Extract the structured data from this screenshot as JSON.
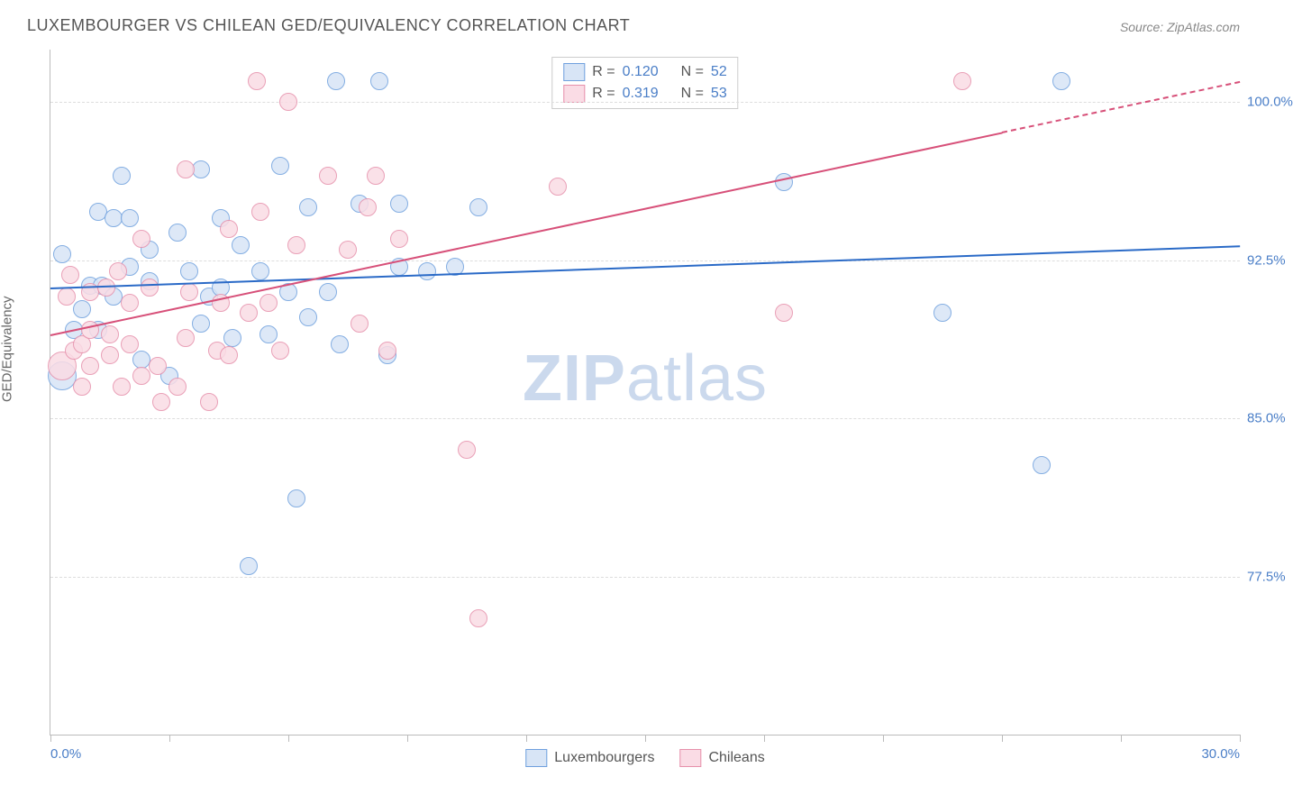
{
  "title": "LUXEMBOURGER VS CHILEAN GED/EQUIVALENCY CORRELATION CHART",
  "source": "Source: ZipAtlas.com",
  "watermark_bold": "ZIP",
  "watermark_light": "atlas",
  "chart": {
    "type": "scatter",
    "ylabel": "GED/Equivalency",
    "x_axis": {
      "min": 0.0,
      "max": 30.0,
      "label_suffix": "%",
      "tick_step": 3.0,
      "left_label": "0.0%",
      "right_label": "30.0%"
    },
    "y_axis": {
      "min": 70.0,
      "max": 102.5,
      "label_suffix": "%",
      "ticks": [
        77.5,
        85.0,
        92.5,
        100.0
      ]
    },
    "grid_color": "#dddddd",
    "axis_color": "#bbbbbb",
    "tick_label_color": "#4a7ec7",
    "background_color": "#ffffff",
    "watermark_color": "#cbd9ed",
    "marker_radius": 10,
    "marker_radius_large": 16,
    "series": [
      {
        "name": "Luxembourgers",
        "fill": "#d8e5f6",
        "stroke": "#6fa0de",
        "r_value": "0.120",
        "n_value": "52",
        "trend": {
          "x1": 0.0,
          "y1": 91.2,
          "x2": 30.0,
          "y2": 93.2,
          "color": "#2a6ac7",
          "dashed_after_x": null
        },
        "points": [
          {
            "x": 0.3,
            "y": 87.0,
            "r": 16
          },
          {
            "x": 0.3,
            "y": 92.8
          },
          {
            "x": 1.2,
            "y": 94.8
          },
          {
            "x": 1.0,
            "y": 91.3
          },
          {
            "x": 1.3,
            "y": 91.3
          },
          {
            "x": 0.8,
            "y": 90.2
          },
          {
            "x": 0.6,
            "y": 89.2
          },
          {
            "x": 1.2,
            "y": 89.2
          },
          {
            "x": 1.6,
            "y": 90.8
          },
          {
            "x": 1.6,
            "y": 94.5
          },
          {
            "x": 2.0,
            "y": 92.2
          },
          {
            "x": 2.0,
            "y": 94.5
          },
          {
            "x": 1.8,
            "y": 96.5
          },
          {
            "x": 2.5,
            "y": 91.5
          },
          {
            "x": 2.5,
            "y": 93.0
          },
          {
            "x": 2.3,
            "y": 87.8
          },
          {
            "x": 3.0,
            "y": 87.0
          },
          {
            "x": 3.2,
            "y": 93.8
          },
          {
            "x": 3.8,
            "y": 89.5
          },
          {
            "x": 3.5,
            "y": 92.0
          },
          {
            "x": 4.0,
            "y": 90.8
          },
          {
            "x": 3.8,
            "y": 96.8
          },
          {
            "x": 4.3,
            "y": 91.2
          },
          {
            "x": 4.3,
            "y": 94.5
          },
          {
            "x": 4.6,
            "y": 88.8
          },
          {
            "x": 4.8,
            "y": 93.2
          },
          {
            "x": 5.0,
            "y": 78.0
          },
          {
            "x": 5.3,
            "y": 92.0
          },
          {
            "x": 5.5,
            "y": 89.0
          },
          {
            "x": 5.8,
            "y": 97.0
          },
          {
            "x": 6.0,
            "y": 91.0
          },
          {
            "x": 6.2,
            "y": 81.2
          },
          {
            "x": 6.5,
            "y": 89.8
          },
          {
            "x": 6.5,
            "y": 95.0
          },
          {
            "x": 7.2,
            "y": 101.0
          },
          {
            "x": 7.0,
            "y": 91.0
          },
          {
            "x": 7.3,
            "y": 88.5
          },
          {
            "x": 7.8,
            "y": 95.2
          },
          {
            "x": 8.5,
            "y": 88.0
          },
          {
            "x": 8.3,
            "y": 101.0
          },
          {
            "x": 8.8,
            "y": 92.2
          },
          {
            "x": 8.8,
            "y": 95.2
          },
          {
            "x": 9.5,
            "y": 92.0
          },
          {
            "x": 10.2,
            "y": 92.2
          },
          {
            "x": 10.8,
            "y": 95.0
          },
          {
            "x": 18.5,
            "y": 96.2
          },
          {
            "x": 22.5,
            "y": 90.0
          },
          {
            "x": 25.0,
            "y": 82.8
          },
          {
            "x": 25.5,
            "y": 101.0
          }
        ]
      },
      {
        "name": "Chileans",
        "fill": "#fadce5",
        "stroke": "#e690ab",
        "r_value": "0.319",
        "n_value": "53",
        "trend": {
          "x1": 0.0,
          "y1": 89.0,
          "x2": 30.0,
          "y2": 101.0,
          "color": "#d75079",
          "dashed_after_x": 24.0
        },
        "points": [
          {
            "x": 0.3,
            "y": 87.5,
            "r": 16
          },
          {
            "x": 0.4,
            "y": 90.8
          },
          {
            "x": 0.6,
            "y": 88.2
          },
          {
            "x": 0.5,
            "y": 91.8
          },
          {
            "x": 0.8,
            "y": 88.5
          },
          {
            "x": 0.8,
            "y": 86.5
          },
          {
            "x": 1.0,
            "y": 89.2
          },
          {
            "x": 1.0,
            "y": 91.0
          },
          {
            "x": 1.0,
            "y": 87.5
          },
          {
            "x": 1.4,
            "y": 91.2
          },
          {
            "x": 1.5,
            "y": 89.0
          },
          {
            "x": 1.5,
            "y": 88.0
          },
          {
            "x": 1.7,
            "y": 92.0
          },
          {
            "x": 1.8,
            "y": 86.5
          },
          {
            "x": 2.0,
            "y": 88.5
          },
          {
            "x": 2.0,
            "y": 90.5
          },
          {
            "x": 2.3,
            "y": 87.0
          },
          {
            "x": 2.3,
            "y": 93.5
          },
          {
            "x": 2.5,
            "y": 91.2
          },
          {
            "x": 2.7,
            "y": 87.5
          },
          {
            "x": 2.8,
            "y": 85.8
          },
          {
            "x": 3.4,
            "y": 88.8
          },
          {
            "x": 3.2,
            "y": 86.5
          },
          {
            "x": 3.4,
            "y": 96.8
          },
          {
            "x": 3.5,
            "y": 91.0
          },
          {
            "x": 4.0,
            "y": 85.8
          },
          {
            "x": 4.2,
            "y": 88.2
          },
          {
            "x": 4.3,
            "y": 90.5
          },
          {
            "x": 4.5,
            "y": 94.0
          },
          {
            "x": 4.5,
            "y": 88.0
          },
          {
            "x": 5.0,
            "y": 90.0
          },
          {
            "x": 5.3,
            "y": 94.8
          },
          {
            "x": 5.2,
            "y": 101.0
          },
          {
            "x": 5.5,
            "y": 90.5
          },
          {
            "x": 5.8,
            "y": 88.2
          },
          {
            "x": 6.0,
            "y": 100.0
          },
          {
            "x": 6.2,
            "y": 93.2
          },
          {
            "x": 7.0,
            "y": 96.5
          },
          {
            "x": 7.5,
            "y": 93.0
          },
          {
            "x": 7.8,
            "y": 89.5
          },
          {
            "x": 8.0,
            "y": 95.0
          },
          {
            "x": 8.2,
            "y": 96.5
          },
          {
            "x": 8.5,
            "y": 88.2
          },
          {
            "x": 8.8,
            "y": 93.5
          },
          {
            "x": 10.5,
            "y": 83.5
          },
          {
            "x": 10.8,
            "y": 75.5
          },
          {
            "x": 12.8,
            "y": 96.0
          },
          {
            "x": 18.5,
            "y": 90.0
          },
          {
            "x": 23.0,
            "y": 101.0
          }
        ]
      }
    ]
  },
  "legend_top": {
    "r_label": "R =",
    "n_label": "N ="
  },
  "legend_bottom": {
    "item1": "Luxembourgers",
    "item2": "Chileans"
  }
}
